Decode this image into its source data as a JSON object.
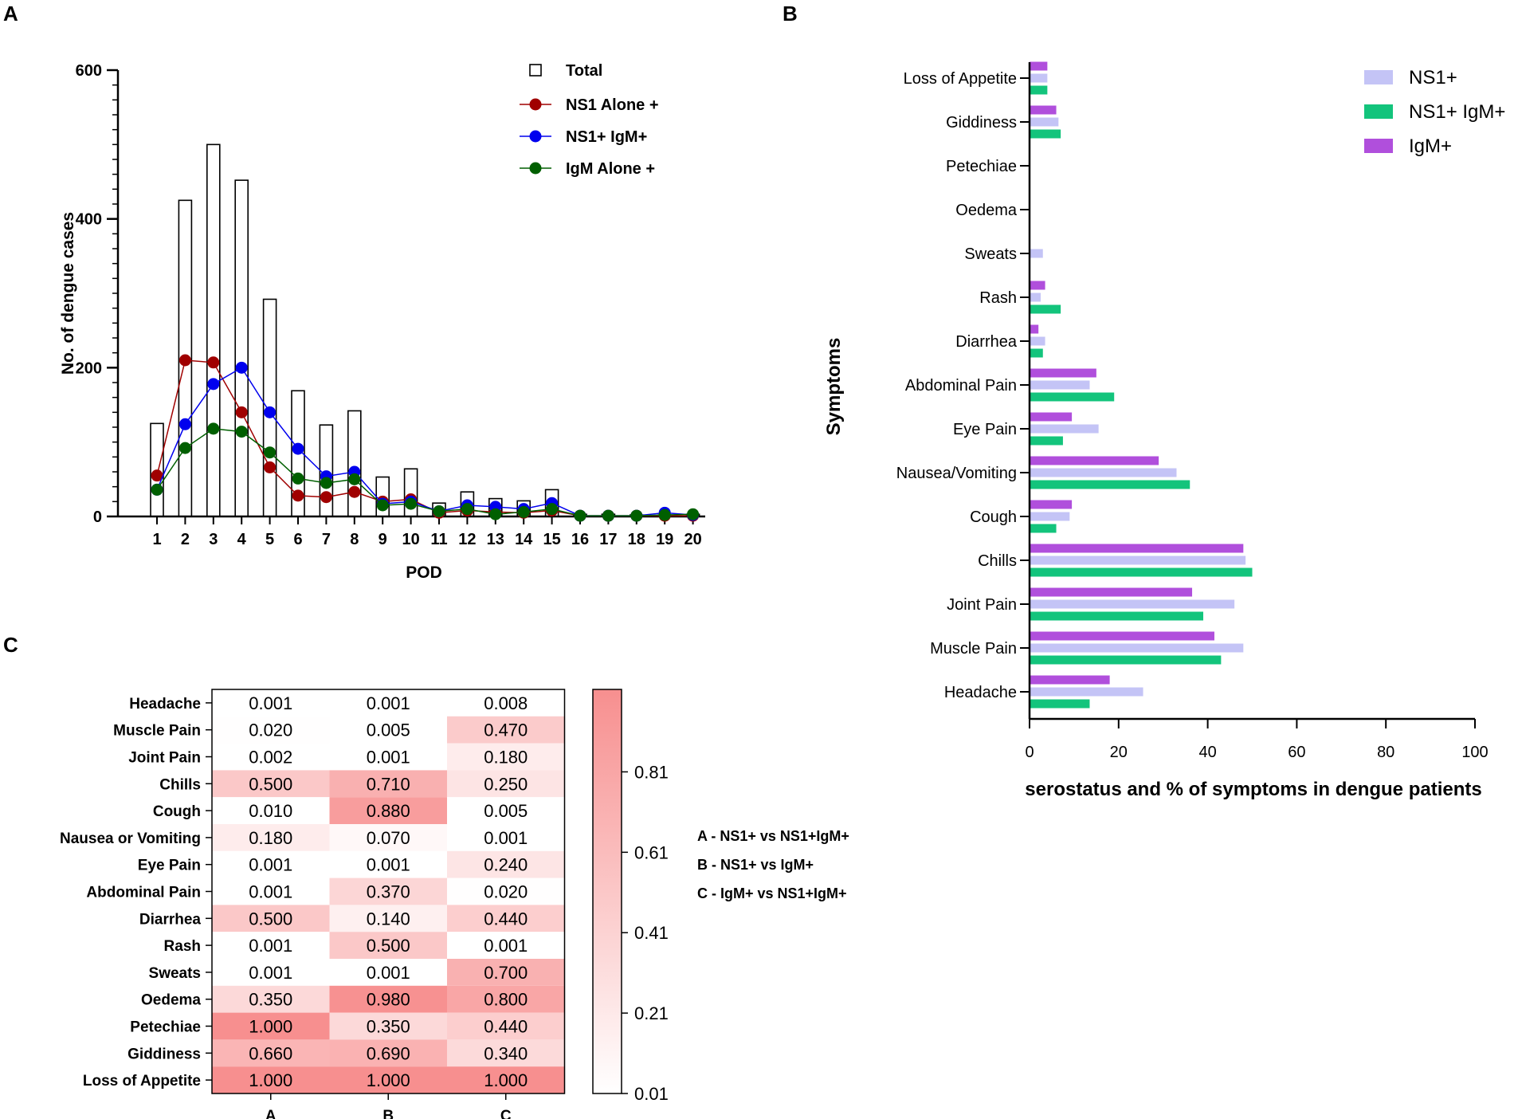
{
  "panel_a": {
    "label": "A"
  },
  "panel_b": {
    "label": "B"
  },
  "panel_c": {
    "label": "C"
  },
  "chart_data": [
    {
      "id": "panel-a",
      "type": "bar+line",
      "xlabel": "POD",
      "ylabel": "No. of dengue cases",
      "ylim": [
        0,
        600
      ],
      "yticks": [
        0,
        200,
        400,
        600
      ],
      "categories": [
        "1",
        "2",
        "3",
        "4",
        "5",
        "6",
        "7",
        "8",
        "9",
        "10",
        "11",
        "12",
        "13",
        "14",
        "15",
        "16",
        "17",
        "18",
        "19",
        "20"
      ],
      "bar_series": {
        "name": "Total",
        "values": [
          125,
          425,
          500,
          452,
          292,
          169,
          123,
          142,
          53,
          64,
          18,
          33,
          24,
          21,
          36,
          3,
          3,
          2,
          2,
          3
        ]
      },
      "line_series": [
        {
          "name": "NS1 Alone +",
          "color": "#a00000",
          "values": [
            55,
            210,
            207,
            140,
            66,
            28,
            26,
            33,
            20,
            23,
            5,
            8,
            6,
            5,
            8,
            1,
            1,
            1,
            1,
            1
          ]
        },
        {
          "name": "NS1+ IgM+",
          "color": "#0000ee",
          "values": [
            36,
            124,
            178,
            200,
            140,
            91,
            54,
            60,
            17,
            20,
            7,
            15,
            13,
            10,
            18,
            1,
            1,
            1,
            5,
            2
          ]
        },
        {
          "name": "IgM Alone +",
          "color": "#005f00",
          "values": [
            36,
            92,
            118,
            114,
            86,
            51,
            45,
            50,
            15,
            17,
            7,
            10,
            3,
            6,
            10,
            1,
            1,
            1,
            2,
            3
          ]
        }
      ],
      "legend": [
        "Total",
        "NS1 Alone +",
        "NS1+ IgM+",
        "IgM Alone +"
      ]
    },
    {
      "id": "panel-b",
      "type": "bar",
      "orientation": "horizontal",
      "ylabel": "Symptoms",
      "xlabel": "serostatus and % of symptoms in dengue patients",
      "xlim": [
        0,
        100
      ],
      "xticks": [
        0,
        20,
        40,
        60,
        80,
        100
      ],
      "categories": [
        "Headache",
        "Muscle Pain",
        "Joint Pain",
        "Chills",
        "Cough",
        "Nausea/Vomiting",
        "Eye Pain",
        "Abdominal Pain",
        "Diarrhea",
        "Rash",
        "Sweats",
        "Oedema",
        "Petechiae",
        "Giddiness",
        "Loss of Appetite"
      ],
      "series": [
        {
          "name": "IgM+",
          "color": "#b04fdc",
          "values": [
            18,
            41.5,
            36.5,
            48,
            9.5,
            29,
            9.5,
            15,
            2,
            3.5,
            0,
            0,
            0,
            6,
            4
          ]
        },
        {
          "name": "NS1+",
          "color": "#c4c4f6",
          "values": [
            25.5,
            48,
            46,
            48.5,
            9,
            33,
            15.5,
            13.5,
            3.5,
            2.5,
            3,
            0,
            0,
            6.5,
            4
          ]
        },
        {
          "name": "NS1+ IgM+",
          "color": "#13c47c",
          "values": [
            13.5,
            43,
            39,
            50,
            6,
            36,
            7.5,
            19,
            3,
            7,
            0,
            0,
            0,
            7,
            4
          ]
        }
      ],
      "legend": [
        "NS1+",
        "NS1+ IgM+",
        "IgM+"
      ]
    },
    {
      "id": "panel-c",
      "type": "heatmap",
      "columns": [
        "A",
        "B",
        "C"
      ],
      "rows": [
        "Headache",
        "Muscle Pain",
        "Joint Pain",
        "Chills",
        "Cough",
        "Nausea or Vomiting",
        "Eye Pain",
        "Abdominal Pain",
        "Diarrhea",
        "Rash",
        "Sweats",
        "Oedema",
        "Petechiae",
        "Giddiness",
        "Loss of Appetite"
      ],
      "values": [
        [
          "0.001",
          "0.001",
          "0.008"
        ],
        [
          "0.020",
          "0.005",
          "0.470"
        ],
        [
          "0.002",
          "0.001",
          "0.180"
        ],
        [
          "0.500",
          "0.710",
          "0.250"
        ],
        [
          "0.010",
          "0.880",
          "0.005"
        ],
        [
          "0.180",
          "0.070",
          "0.001"
        ],
        [
          "0.001",
          "0.001",
          "0.240"
        ],
        [
          "0.001",
          "0.370",
          "0.020"
        ],
        [
          "0.500",
          "0.140",
          "0.440"
        ],
        [
          "0.001",
          "0.500",
          "0.001"
        ],
        [
          "0.001",
          "0.001",
          "0.700"
        ],
        [
          "0.350",
          "0.980",
          "0.800"
        ],
        [
          "1.000",
          "0.350",
          "0.440"
        ],
        [
          "0.660",
          "0.690",
          "0.340"
        ],
        [
          "1.000",
          "1.000",
          "1.000"
        ]
      ],
      "colorbar": {
        "min": 0.01,
        "max": 1.0,
        "ticks": [
          "0.81",
          "0.61",
          "0.41",
          "0.21",
          "0.01"
        ],
        "color_low": "#ffffff",
        "color_high": "#f78f8f"
      },
      "key": [
        "A - NS1+ vs NS1+IgM+",
        "B - NS1+ vs IgM+",
        "C - IgM+ vs NS1+IgM+"
      ]
    }
  ]
}
